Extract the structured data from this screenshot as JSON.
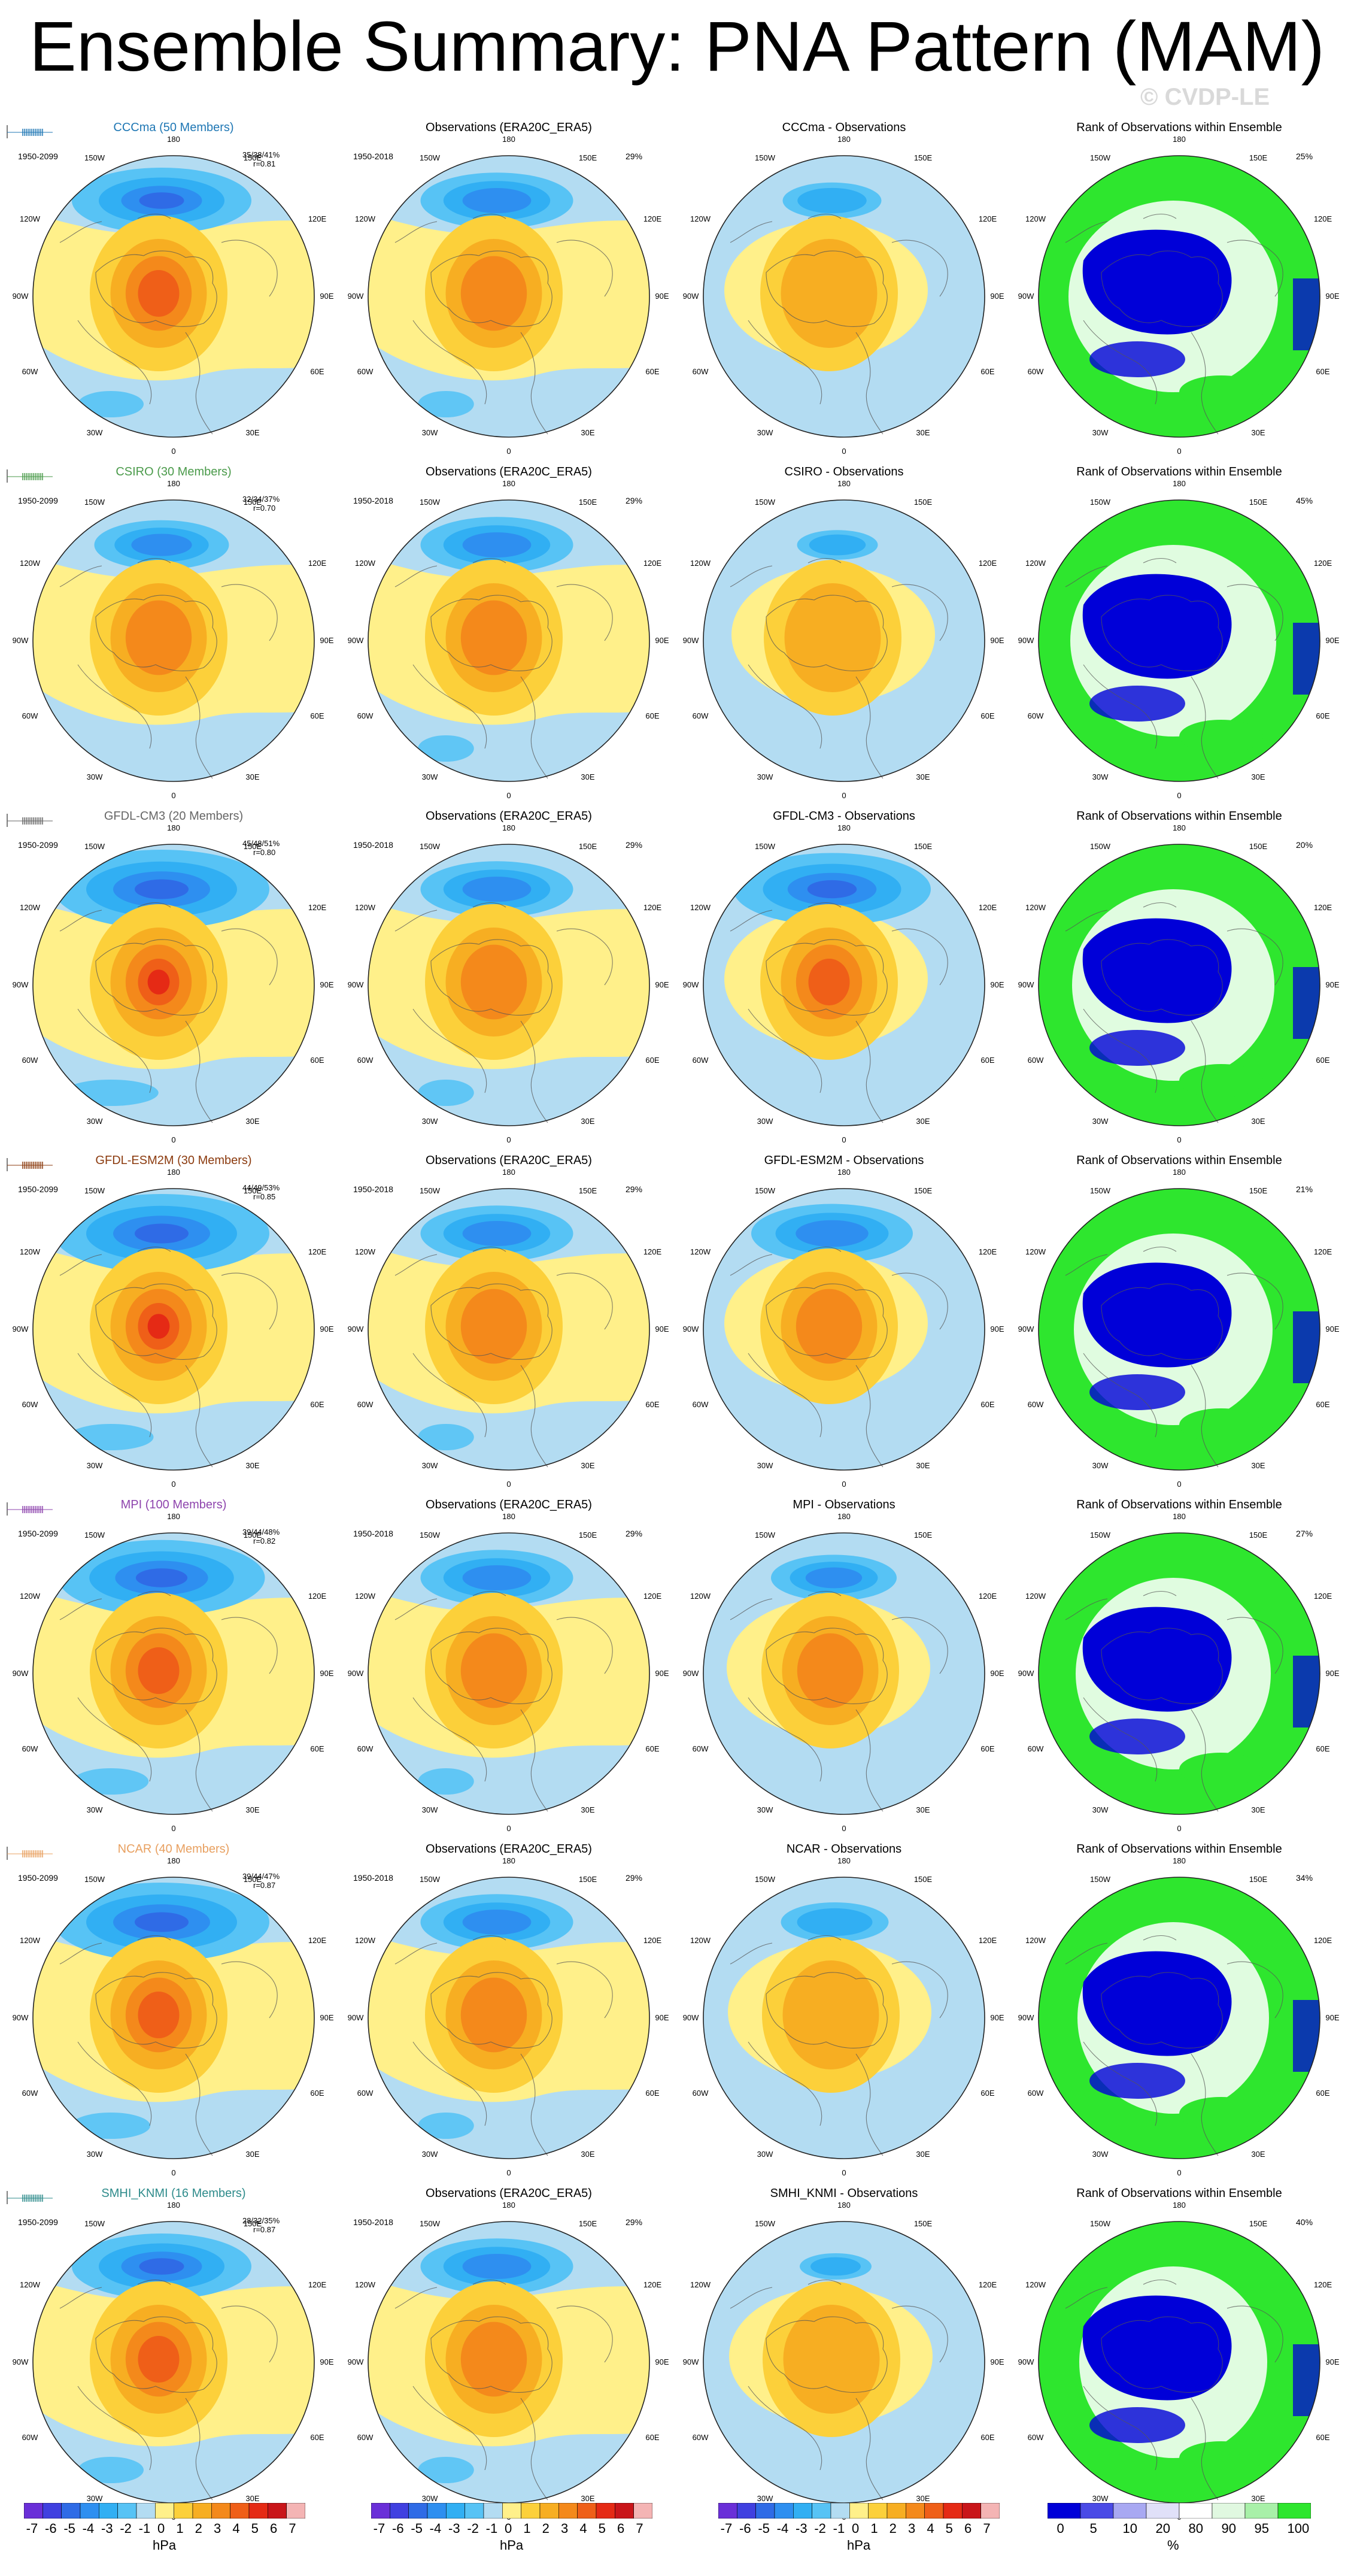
{
  "title": "Ensemble Summary: PNA Pattern (MAM)",
  "watermark": "© CVDP-LE",
  "column_titles": {
    "observations": "Observations (ERA20C_ERA5)",
    "rank": "Rank of Observations within Ensemble"
  },
  "periods": {
    "model": "1950-2099",
    "observations": "1950-2018"
  },
  "obs_explained_variance": "29%",
  "map_labels": [
    "180",
    "150W",
    "150E",
    "120W",
    "120E",
    "90W",
    "90E",
    "60W",
    "60E",
    "30W",
    "30E",
    "0"
  ],
  "rows": [
    {
      "model_title": "CCCma (50 Members)",
      "title_color": "#1f77b4",
      "diff_title": "CCCma - Observations",
      "stats_pct": "35/38/41%",
      "stats_r": "r=0.81",
      "rank_pct": "25%",
      "model_strength": 1.0,
      "diff_strength": 0.55,
      "diff_shift": 0.0
    },
    {
      "model_title": "CSIRO (30 Members)",
      "title_color": "#4a9a4a",
      "diff_title": "CSIRO - Observations",
      "stats_pct": "32/34/37%",
      "stats_r": "r=0.70",
      "rank_pct": "45%",
      "model_strength": 0.75,
      "diff_strength": 0.45,
      "diff_shift": 0.3
    },
    {
      "model_title": "GFDL-CM3 (20 Members)",
      "title_color": "#666666",
      "diff_title": "GFDL-CM3 - Observations",
      "stats_pct": "45/48/51%",
      "stats_r": "r=0.80",
      "rank_pct": "20%",
      "model_strength": 1.45,
      "diff_strength": 1.1,
      "diff_shift": 0.0
    },
    {
      "model_title": "GFDL-ESM2M (30 Members)",
      "title_color": "#8b3a0e",
      "diff_title": "GFDL-ESM2M - Observations",
      "stats_pct": "44/49/53%",
      "stats_r": "r=0.85",
      "rank_pct": "21%",
      "model_strength": 1.3,
      "diff_strength": 0.9,
      "diff_shift": 0.0
    },
    {
      "model_title": "MPI (100 Members)",
      "title_color": "#8e44ad",
      "diff_title": "MPI - Observations",
      "stats_pct": "39/44/48%",
      "stats_r": "r=0.82",
      "rank_pct": "27%",
      "model_strength": 1.15,
      "diff_strength": 0.7,
      "diff_shift": 0.1
    },
    {
      "model_title": "NCAR (40 Members)",
      "title_color": "#e8a060",
      "diff_title": "NCAR - Observations",
      "stats_pct": "39/44/47%",
      "stats_r": "r=0.87",
      "rank_pct": "34%",
      "model_strength": 1.2,
      "diff_strength": 0.6,
      "diff_shift": 0.15
    },
    {
      "model_title": "SMHI_KNMI (16 Members)",
      "title_color": "#2e8b8b",
      "diff_title": "SMHI_KNMI - Observations",
      "stats_pct": "28/32/35%",
      "stats_r": "r=0.87",
      "rank_pct": "40%",
      "model_strength": 1.0,
      "diff_strength": 0.4,
      "diff_shift": 0.2
    }
  ],
  "colorbars": {
    "hpa_labels": [
      "-7",
      "-6",
      "-5",
      "-4",
      "-3",
      "-2",
      "-1",
      "0",
      "1",
      "2",
      "3",
      "4",
      "5",
      "6",
      "7"
    ],
    "hpa_unit": "hPa",
    "hpa_colors": [
      "#6a2fd8",
      "#4040e0",
      "#2f6be6",
      "#2e8ff0",
      "#31aff3",
      "#57c3f5",
      "#b3dcf2",
      "#fff08a",
      "#fcd03a",
      "#f7ae22",
      "#f4891b",
      "#ef5f18",
      "#e52a15",
      "#c9151a",
      "#f4b4b4"
    ],
    "rank_labels": [
      "0",
      "5",
      "10",
      "20",
      "80",
      "90",
      "95",
      "100"
    ],
    "rank_unit": "%",
    "rank_colors": [
      "#0000d8",
      "#4a4ae6",
      "#a8a8f2",
      "#e0e0f8",
      "#ffffff",
      "#e0f8e0",
      "#a8f0a8",
      "#2ee62e"
    ]
  }
}
